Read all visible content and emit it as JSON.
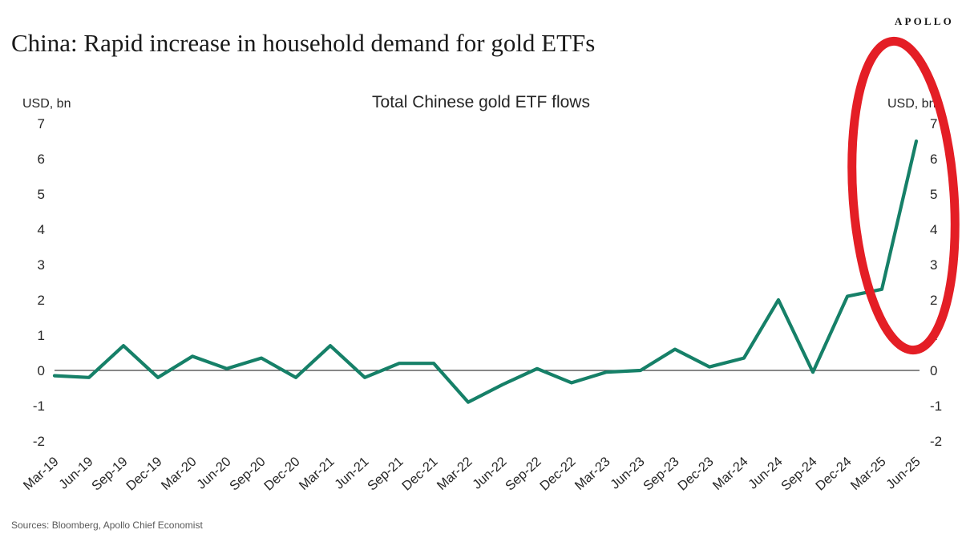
{
  "header": {
    "logo": "APOLLO",
    "title": "China: Rapid increase in household demand for gold ETFs"
  },
  "chart_data": {
    "type": "line",
    "title": "Total Chinese gold ETF flows",
    "y_unit_left": "USD, bn",
    "y_unit_right": "USD, bn",
    "categories": [
      "Mar-19",
      "Jun-19",
      "Sep-19",
      "Dec-19",
      "Mar-20",
      "Jun-20",
      "Sep-20",
      "Dec-20",
      "Mar-21",
      "Jun-21",
      "Sep-21",
      "Dec-21",
      "Mar-22",
      "Jun-22",
      "Sep-22",
      "Dec-22",
      "Mar-23",
      "Jun-23",
      "Sep-23",
      "Dec-23",
      "Mar-24",
      "Jun-24",
      "Sep-24",
      "Dec-24",
      "Mar-25",
      "Jun-25"
    ],
    "series": [
      {
        "name": "Total Chinese gold ETF flows",
        "values": [
          -0.15,
          -0.2,
          0.7,
          -0.2,
          0.4,
          0.05,
          0.35,
          -0.2,
          0.7,
          -0.2,
          0.2,
          0.2,
          -0.9,
          -0.4,
          0.05,
          -0.35,
          -0.05,
          0.0,
          0.6,
          0.1,
          0.35,
          2.0,
          -0.05,
          2.1,
          2.3,
          6.5
        ]
      }
    ],
    "ylim": [
      -2,
      7
    ],
    "yticks": [
      7,
      6,
      5,
      4,
      3,
      2,
      1,
      0,
      -1,
      -2
    ],
    "grid": false,
    "legend_position": "none",
    "line_color": "#168068",
    "zero_line_color": "#404040",
    "annotation": {
      "shape": "hand-drawn-ellipse",
      "color": "#e41e25",
      "highlights": "Jun-25 surge"
    }
  },
  "footer": {
    "sources": "Sources: Bloomberg, Apollo Chief Economist"
  }
}
